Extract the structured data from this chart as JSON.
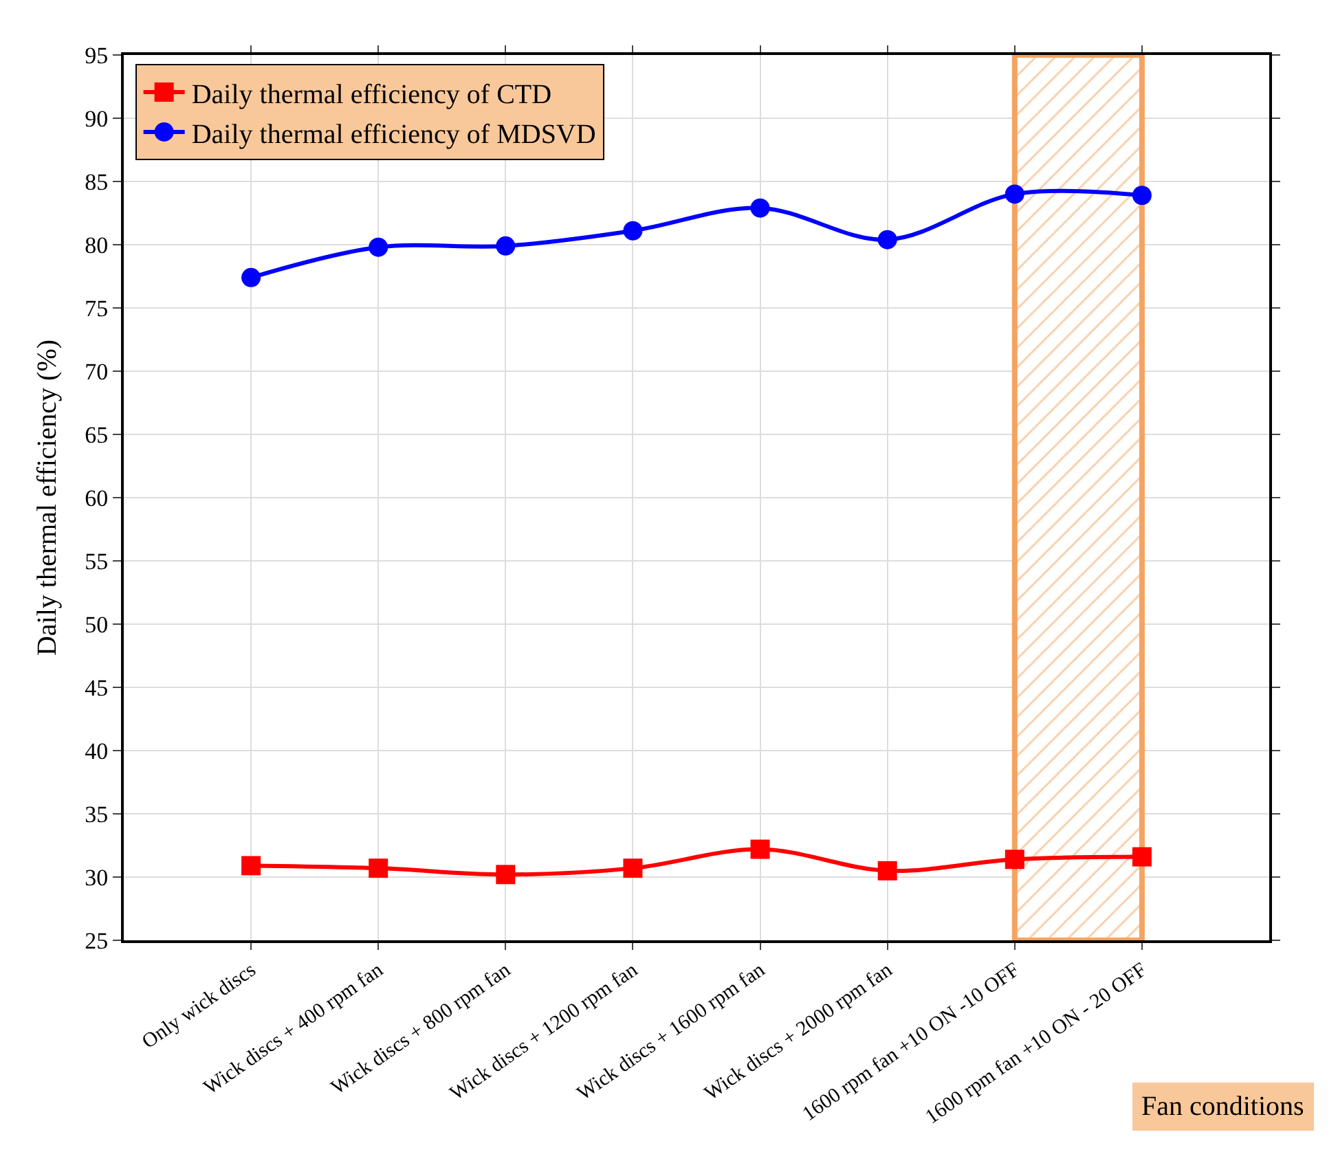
{
  "chart_data": {
    "type": "line",
    "categories": [
      "Only wick discs",
      "Wick discs + 400 rpm fan",
      "Wick discs + 800 rpm fan",
      "Wick discs + 1200 rpm fan",
      "Wick discs + 1600 rpm fan",
      "Wick discs + 2000 rpm fan",
      "1600 rpm fan +10 ON -10 OFF",
      "1600 rpm fan +10 ON - 20 OFF"
    ],
    "series": [
      {
        "name": "Daily thermal efficiency of CTD",
        "color": "#ff0000",
        "marker": "square",
        "values": [
          30.9,
          30.7,
          30.2,
          30.7,
          32.2,
          30.5,
          31.4,
          31.6
        ]
      },
      {
        "name": "Daily thermal efficiency of MDSVD",
        "color": "#0000ff",
        "marker": "circle",
        "values": [
          77.4,
          79.8,
          79.9,
          81.1,
          82.9,
          80.4,
          84.0,
          83.9
        ]
      }
    ],
    "xlabel": "Fan conditions",
    "ylabel": "Daily thermal efficiency (%)",
    "ylim": [
      25,
      95
    ],
    "yticks": [
      25,
      30,
      35,
      40,
      45,
      50,
      55,
      60,
      65,
      70,
      75,
      80,
      85,
      90,
      95
    ],
    "bands": [
      {
        "axis": "x",
        "from": "1600 rpm fan +10 ON -10 OFF",
        "to": "1600 rpm fan +10 ON - 20 OFF",
        "color": "#f4a460"
      }
    ],
    "grid": true,
    "legend": "top left",
    "line_style": "solid"
  }
}
